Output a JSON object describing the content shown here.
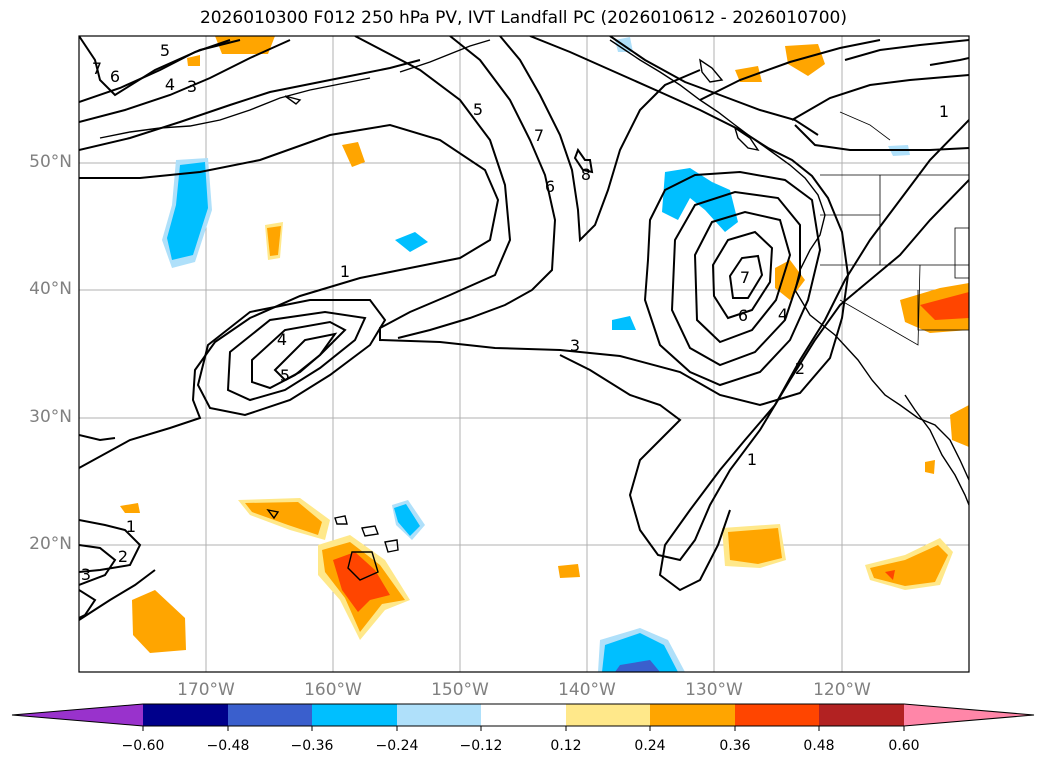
{
  "title": "2026010300 F012 250 hPa PV, IVT Landfall PC (2026010612 - 2026010700)",
  "map": {
    "projection": "cylindrical",
    "lon_range": [
      "180°W",
      "110°W"
    ],
    "lat_range": [
      "10°N",
      "60°N"
    ],
    "gridlines": true,
    "lat_labels": [
      "50°N",
      "40°N",
      "30°N",
      "20°N"
    ],
    "lon_labels": [
      "170°W",
      "160°W",
      "150°W",
      "140°W",
      "130°W",
      "120°W"
    ],
    "contour_labels": [
      "5",
      "4",
      "3",
      "6",
      "7",
      "5",
      "7",
      "6",
      "8",
      "1",
      "4",
      "5",
      "3",
      "7",
      "6",
      "4",
      "2",
      "1",
      "1",
      "1",
      "2",
      "3"
    ],
    "shading": "IVT landfall PC: warm (positive) and cool (negative) patches"
  },
  "colorbar": {
    "extend": "both",
    "ticks": [
      "−0.60",
      "−0.48",
      "−0.36",
      "−0.24",
      "−0.12",
      "0.12",
      "0.24",
      "0.36",
      "0.48",
      "0.60"
    ],
    "colors": [
      "#9932cc",
      "#00008b",
      "#3a5fcd",
      "#00bfff",
      "#afe0fa",
      "#ffffff",
      "#ffe88a",
      "#ffa500",
      "#ff4500",
      "#b22222",
      "#ff86a8"
    ]
  }
}
